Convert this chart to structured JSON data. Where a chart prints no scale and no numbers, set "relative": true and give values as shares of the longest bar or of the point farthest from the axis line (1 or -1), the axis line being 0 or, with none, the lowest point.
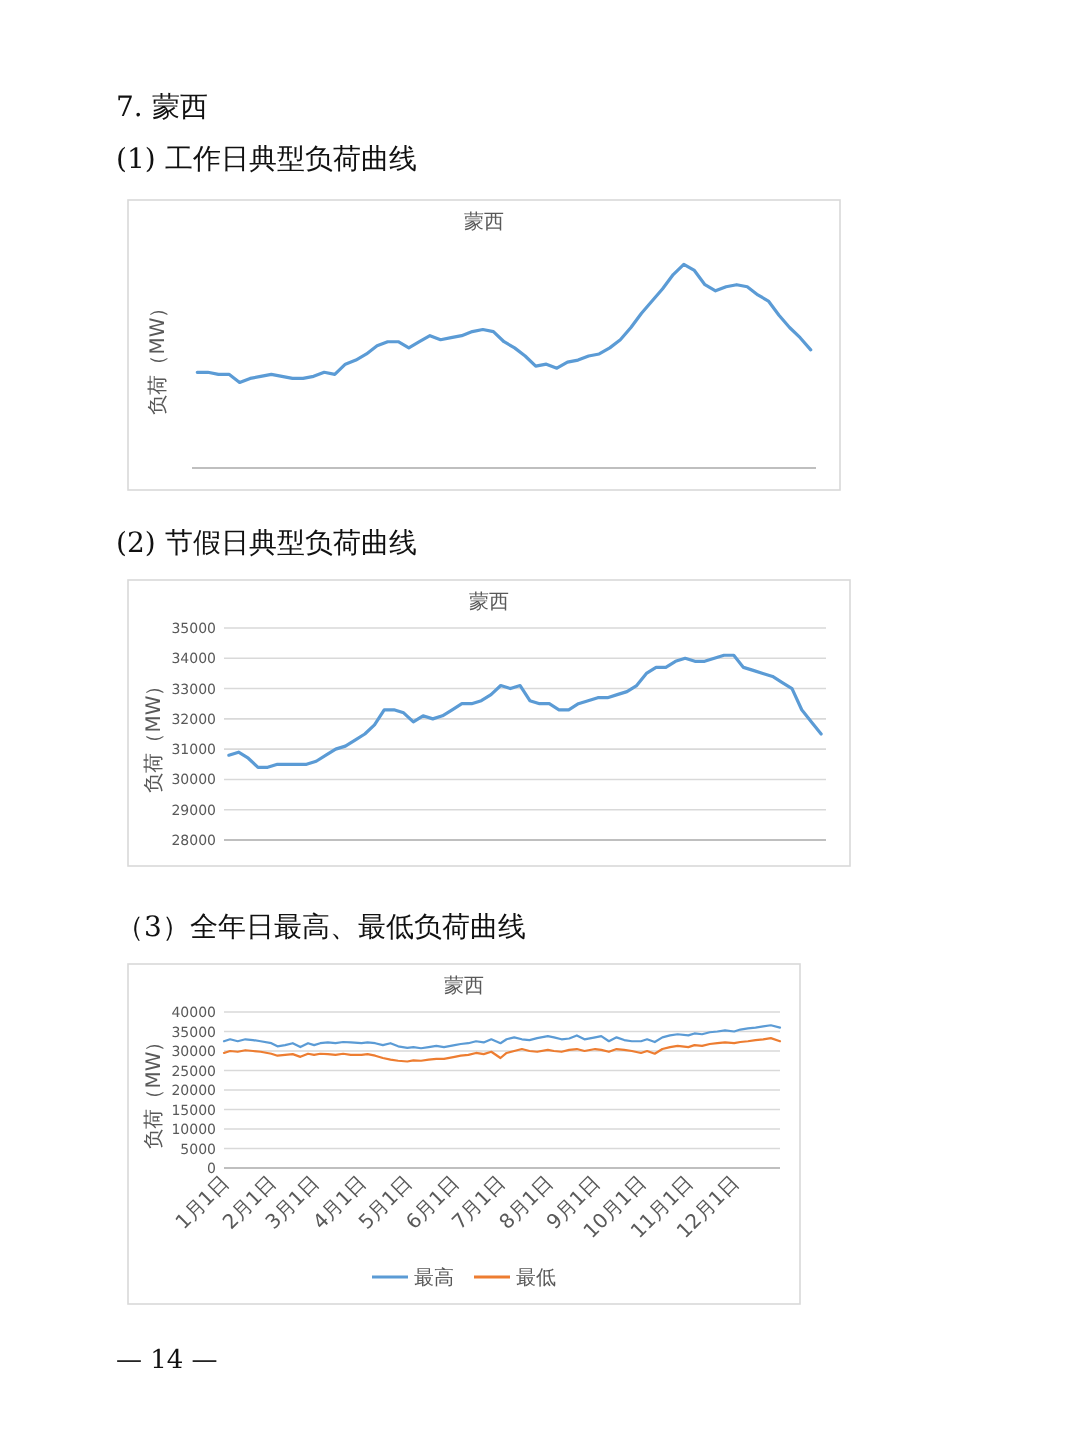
{
  "chart_data": [
    {
      "type": "line",
      "title": "蒙西",
      "ylabel": "负荷（MW）",
      "annotations": [
        "7. 蒙西",
        "(1) 工作日典型负荷曲线"
      ],
      "relative": true,
      "color": "#5b9bd5",
      "categories": [
        null,
        null,
        null,
        null,
        null,
        null,
        null,
        null,
        null,
        null,
        null,
        null,
        null,
        null,
        null,
        null,
        null,
        null,
        null,
        null,
        null,
        null,
        null,
        null,
        null,
        null,
        null,
        null,
        null,
        null,
        null,
        null,
        null,
        null,
        null,
        null,
        null,
        null,
        null,
        null,
        null,
        null,
        null,
        null,
        null,
        null,
        null,
        null,
        null,
        null,
        null,
        null,
        null,
        null,
        null,
        null,
        null,
        null,
        null
      ],
      "values": [
        0.47,
        0.47,
        0.46,
        0.46,
        0.42,
        0.44,
        0.45,
        0.46,
        0.45,
        0.44,
        0.44,
        0.45,
        0.47,
        0.46,
        0.51,
        0.53,
        0.56,
        0.6,
        0.62,
        0.62,
        0.59,
        0.62,
        0.65,
        0.63,
        0.64,
        0.65,
        0.67,
        0.68,
        0.67,
        0.62,
        0.59,
        0.55,
        0.5,
        0.51,
        0.49,
        0.52,
        0.53,
        0.55,
        0.56,
        0.59,
        0.63,
        0.69,
        0.76,
        0.82,
        0.88,
        0.95,
        1,
        0.97,
        0.9,
        0.87,
        0.89,
        0.9,
        0.89,
        0.85,
        0.82,
        0.75,
        0.69,
        0.64,
        0.58
      ]
    },
    {
      "type": "line",
      "title": "蒙西",
      "ylabel": "负荷（MW）",
      "annotations": [
        "(2) 节假日典型负荷曲线"
      ],
      "color": "#5b9bd5",
      "grid": "y",
      "ylim": [
        28000,
        35000
      ],
      "yticks": [
        28000,
        29000,
        30000,
        31000,
        32000,
        33000,
        34000,
        35000
      ],
      "categories": [
        null,
        null,
        null,
        null,
        null,
        null,
        null,
        null,
        null,
        null,
        null,
        null,
        null,
        null,
        null,
        null,
        null,
        null,
        null,
        null,
        null,
        null,
        null,
        null,
        null,
        null,
        null,
        null,
        null,
        null,
        null,
        null,
        null,
        null,
        null,
        null,
        null,
        null,
        null,
        null,
        null,
        null,
        null,
        null,
        null,
        null,
        null,
        null,
        null,
        null,
        null,
        null,
        null,
        null,
        null,
        null,
        null,
        null,
        null,
        null,
        null,
        null
      ],
      "values": [
        30800,
        30900,
        30700,
        30400,
        30400,
        30500,
        30500,
        30500,
        30500,
        30600,
        30800,
        31000,
        31100,
        31300,
        31500,
        31800,
        32300,
        32300,
        32200,
        31900,
        32100,
        32000,
        32100,
        32300,
        32500,
        32500,
        32600,
        32800,
        33100,
        33000,
        33100,
        32600,
        32500,
        32500,
        32300,
        32300,
        32500,
        32600,
        32700,
        32700,
        32800,
        32900,
        33100,
        33500,
        33700,
        33700,
        33900,
        34000,
        33900,
        33900,
        34000,
        34100,
        34100,
        33700,
        33600,
        33500,
        33400,
        33200,
        33000,
        32300,
        31900,
        31500
      ]
    },
    {
      "type": "line",
      "title": "蒙西",
      "ylabel": "负荷（MW）",
      "annotations": [
        "（3）全年日最高、最低负荷曲线",
        "— 14 —"
      ],
      "grid": "y",
      "legend": "bottom",
      "ylim": [
        0,
        40000
      ],
      "yticks": [
        0,
        5000,
        10000,
        15000,
        20000,
        25000,
        30000,
        35000,
        40000
      ],
      "xlim": [
        "--01-01",
        "--12-31"
      ],
      "xticks": [
        {
          "value": "--01-01",
          "label": "1月1日"
        },
        {
          "value": "--02-01",
          "label": "2月1日"
        },
        {
          "value": "--03-01",
          "label": "3月1日"
        },
        {
          "value": "--04-01",
          "label": "4月1日"
        },
        {
          "value": "--05-01",
          "label": "5月1日"
        },
        {
          "value": "--06-01",
          "label": "6月1日"
        },
        {
          "value": "--07-01",
          "label": "7月1日"
        },
        {
          "value": "--08-01",
          "label": "8月1日"
        },
        {
          "value": "--09-01",
          "label": "9月1日"
        },
        {
          "value": "--10-01",
          "label": "10月1日"
        },
        {
          "value": "--11-01",
          "label": "11月1日"
        },
        {
          "value": "--12-01",
          "label": "12月1日"
        }
      ],
      "x": [
        "--01-01",
        "--01-05",
        "--01-10",
        "--01-15",
        "--01-20",
        "--01-25",
        "--02-01",
        "--02-05",
        "--02-10",
        "--02-15",
        "--02-20",
        "--02-25",
        "--03-01",
        "--03-05",
        "--03-10",
        "--03-15",
        "--03-20",
        "--03-25",
        "--04-01",
        "--04-05",
        "--04-10",
        "--04-15",
        "--04-20",
        "--04-25",
        "--05-01",
        "--05-05",
        "--05-10",
        "--05-15",
        "--05-20",
        "--05-25",
        "--06-01",
        "--06-05",
        "--06-10",
        "--06-15",
        "--06-20",
        "--06-25",
        "--07-01",
        "--07-05",
        "--07-10",
        "--07-15",
        "--07-20",
        "--07-25",
        "--08-01",
        "--08-05",
        "--08-10",
        "--08-15",
        "--08-20",
        "--08-25",
        "--09-01",
        "--09-05",
        "--09-10",
        "--09-15",
        "--09-20",
        "--09-25",
        "--10-01",
        "--10-05",
        "--10-10",
        "--10-15",
        "--10-20",
        "--10-25",
        "--11-01",
        "--11-05",
        "--11-10",
        "--11-15",
        "--11-20",
        "--11-25",
        "--12-01",
        "--12-05",
        "--12-10",
        "--12-15",
        "--12-20",
        "--12-25",
        "--12-31"
      ],
      "series": [
        {
          "name": "最高",
          "color": "#5b9bd5",
          "values": [
            32500,
            33000,
            32500,
            33000,
            32800,
            32500,
            32000,
            31200,
            31500,
            32000,
            31000,
            32000,
            31500,
            32000,
            32200,
            32000,
            32300,
            32200,
            32000,
            32200,
            32000,
            31500,
            32000,
            31200,
            30800,
            31000,
            30700,
            31000,
            31300,
            31000,
            31500,
            31800,
            32000,
            32500,
            32200,
            33000,
            32000,
            33000,
            33500,
            33000,
            32800,
            33300,
            33800,
            33500,
            33000,
            33200,
            34000,
            33000,
            33500,
            33800,
            32500,
            33500,
            32800,
            32500,
            32500,
            33000,
            32300,
            33500,
            34000,
            34300,
            34000,
            34500,
            34300,
            34800,
            35000,
            35300,
            35000,
            35500,
            35800,
            36000,
            36300,
            36600,
            36000
          ]
        },
        {
          "name": "最低",
          "color": "#ed7d31",
          "values": [
            29500,
            30000,
            29800,
            30200,
            30000,
            29800,
            29300,
            28800,
            29000,
            29200,
            28500,
            29300,
            29000,
            29300,
            29200,
            29000,
            29300,
            29000,
            29000,
            29200,
            28800,
            28200,
            27800,
            27500,
            27300,
            27600,
            27500,
            27800,
            28000,
            28000,
            28500,
            28800,
            29000,
            29500,
            29200,
            29800,
            28200,
            29500,
            30000,
            30500,
            30000,
            29800,
            30300,
            30000,
            29800,
            30300,
            30500,
            30000,
            30500,
            30300,
            29800,
            30500,
            30300,
            30000,
            29500,
            30000,
            29300,
            30500,
            31000,
            31300,
            31000,
            31500,
            31300,
            31800,
            32000,
            32200,
            32000,
            32300,
            32500,
            32800,
            33000,
            33300,
            32500
          ]
        }
      ]
    }
  ]
}
